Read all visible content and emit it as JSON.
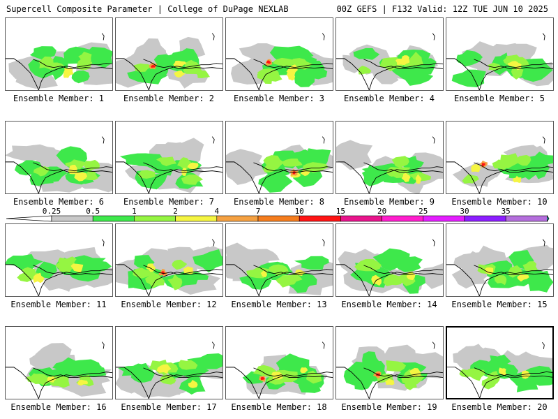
{
  "header": {
    "title": "Supercell Composite Parameter | College of DuPage NEXLAB",
    "run_info": "00Z GEFS | F132 Valid: 12Z TUE JUN 10 2025"
  },
  "colorbar": {
    "ticks": [
      "0.25",
      "0.5",
      "1",
      "2",
      "4",
      "7",
      "10",
      "15",
      "20",
      "25",
      "30",
      "35"
    ],
    "colors": [
      "#c8c8c8",
      "#3ee84b",
      "#95f542",
      "#f5f542",
      "#f5a142",
      "#f57d1e",
      "#ff1414",
      "#e8148c",
      "#ff1ecd",
      "#e41eff",
      "#8c1eff",
      "#b46edc",
      "#32e6f0"
    ]
  },
  "panels": [
    {
      "label": "Ensemble Member: 1"
    },
    {
      "label": "Ensemble Member: 2"
    },
    {
      "label": "Ensemble Member: 3"
    },
    {
      "label": "Ensemble Member: 4"
    },
    {
      "label": "Ensemble Member: 5"
    },
    {
      "label": "Ensemble Member: 6"
    },
    {
      "label": "Ensemble Member: 7"
    },
    {
      "label": "Ensemble Member: 8"
    },
    {
      "label": "Ensemble Member: 9"
    },
    {
      "label": "Ensemble Member: 10"
    },
    {
      "label": "Ensemble Member: 11"
    },
    {
      "label": "Ensemble Member: 12"
    },
    {
      "label": "Ensemble Member: 13"
    },
    {
      "label": "Ensemble Member: 14"
    },
    {
      "label": "Ensemble Member: 15"
    },
    {
      "label": "Ensemble Member: 16"
    },
    {
      "label": "Ensemble Member: 17"
    },
    {
      "label": "Ensemble Member: 18"
    },
    {
      "label": "Ensemble Member: 19"
    },
    {
      "label": "Ensemble Member: 20",
      "selected": true
    }
  ]
}
